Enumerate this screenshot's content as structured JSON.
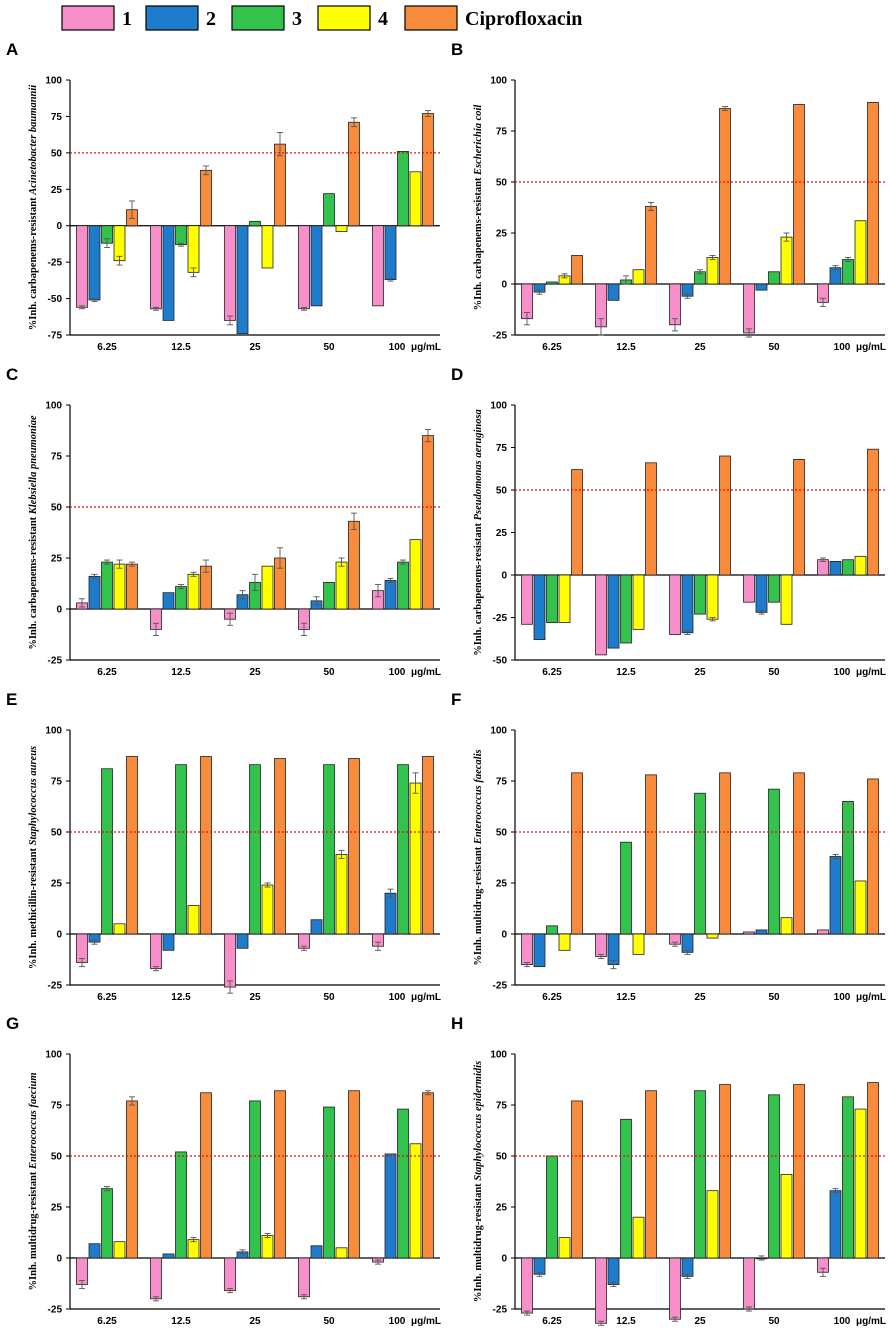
{
  "legend": {
    "entries": [
      {
        "label": "1",
        "color": "#f78fcb"
      },
      {
        "label": "2",
        "color": "#1f7ccc"
      },
      {
        "label": "3",
        "color": "#33c24c"
      },
      {
        "label": "4",
        "color": "#ffff00"
      },
      {
        "label": "Ciprofloxacin",
        "color": "#f98b3c"
      }
    ]
  },
  "chart_data": [
    {
      "panel": "A",
      "type": "bar",
      "ylabel_prefix": "%Inh. carbapenems-resistant ",
      "ylabel_italic": "Acinetobacter baumannii",
      "categories": [
        "6.25",
        "12.5",
        "25",
        "50",
        "100"
      ],
      "unit": "μg/mL",
      "ylim": [
        -75,
        100
      ],
      "yticks": [
        -75,
        -50,
        -25,
        0,
        25,
        50,
        75,
        100
      ],
      "reference_line": 50,
      "series": [
        {
          "name": "1",
          "values": [
            -56,
            -57,
            -65,
            -57,
            -55
          ],
          "errors": [
            1,
            1,
            3,
            1,
            0
          ]
        },
        {
          "name": "2",
          "values": [
            -51,
            -65,
            -74,
            -55,
            -37
          ],
          "errors": [
            1,
            0,
            0,
            0,
            1
          ]
        },
        {
          "name": "3",
          "values": [
            -12,
            -13,
            3,
            22,
            51
          ],
          "errors": [
            3,
            1,
            0,
            0,
            0
          ]
        },
        {
          "name": "4",
          "values": [
            -24,
            -32,
            -29,
            -4,
            37
          ],
          "errors": [
            3,
            3,
            0,
            0,
            0
          ]
        },
        {
          "name": "Ciprofloxacin",
          "values": [
            11,
            38,
            56,
            71,
            77
          ],
          "errors": [
            6,
            3,
            8,
            3,
            2
          ]
        }
      ]
    },
    {
      "panel": "B",
      "type": "bar",
      "ylabel_prefix": "%Inh. carbapenems-resistant ",
      "ylabel_italic": "Escherichia coil",
      "categories": [
        "6.25",
        "12.5",
        "25",
        "50",
        "100"
      ],
      "unit": "μg/mL",
      "ylim": [
        -25,
        100
      ],
      "yticks": [
        -25,
        0,
        25,
        50,
        75,
        100
      ],
      "reference_line": 50,
      "series": [
        {
          "name": "1",
          "values": [
            -17,
            -21,
            -20,
            -24,
            -9
          ],
          "errors": [
            3,
            4,
            3,
            2,
            2
          ]
        },
        {
          "name": "2",
          "values": [
            -4,
            -8,
            -6,
            -3,
            8
          ],
          "errors": [
            1,
            0,
            1,
            0,
            1
          ]
        },
        {
          "name": "3",
          "values": [
            1,
            2,
            6,
            6,
            12
          ],
          "errors": [
            0,
            2,
            1,
            0,
            1
          ]
        },
        {
          "name": "4",
          "values": [
            4,
            7,
            13,
            23,
            31
          ],
          "errors": [
            1,
            0,
            1,
            2,
            0
          ]
        },
        {
          "name": "Ciprofloxacin",
          "values": [
            14,
            38,
            86,
            88,
            89
          ],
          "errors": [
            0,
            2,
            1,
            0,
            0
          ]
        }
      ]
    },
    {
      "panel": "C",
      "type": "bar",
      "ylabel_prefix": "%Inh. carbapenems-resistant ",
      "ylabel_italic": "Klebsiella pneumoniae",
      "categories": [
        "6.25",
        "12.5",
        "25",
        "50",
        "100"
      ],
      "unit": "μg/mL",
      "ylim": [
        -25,
        100
      ],
      "yticks": [
        -25,
        0,
        25,
        50,
        75,
        100
      ],
      "reference_line": 50,
      "series": [
        {
          "name": "1",
          "values": [
            3,
            -10,
            -5,
            -10,
            9
          ],
          "errors": [
            2,
            3,
            3,
            3,
            3
          ]
        },
        {
          "name": "2",
          "values": [
            16,
            8,
            7,
            4,
            14
          ],
          "errors": [
            1,
            0,
            2,
            2,
            1
          ]
        },
        {
          "name": "3",
          "values": [
            23,
            11,
            13,
            13,
            23
          ],
          "errors": [
            1,
            1,
            4,
            0,
            1
          ]
        },
        {
          "name": "4",
          "values": [
            22,
            17,
            21,
            23,
            34
          ],
          "errors": [
            2,
            1,
            0,
            2,
            0
          ]
        },
        {
          "name": "Ciprofloxacin",
          "values": [
            22,
            21,
            25,
            43,
            85
          ],
          "errors": [
            1,
            3,
            5,
            4,
            3
          ]
        }
      ]
    },
    {
      "panel": "D",
      "type": "bar",
      "ylabel_prefix": "%Inh. carbapenems-resistant ",
      "ylabel_italic": "Pseudomonas aeruginosa",
      "categories": [
        "6.25",
        "12.5",
        "25",
        "50",
        "100"
      ],
      "unit": "μg/mL",
      "ylim": [
        -50,
        100
      ],
      "yticks": [
        -50,
        -25,
        0,
        25,
        50,
        75,
        100
      ],
      "reference_line": 50,
      "series": [
        {
          "name": "1",
          "values": [
            -29,
            -47,
            -35,
            -16,
            9
          ],
          "errors": [
            0,
            0,
            0,
            0,
            1
          ]
        },
        {
          "name": "2",
          "values": [
            -38,
            -43,
            -34,
            -22,
            8
          ],
          "errors": [
            0,
            0,
            1,
            1,
            0
          ]
        },
        {
          "name": "3",
          "values": [
            -28,
            -40,
            -23,
            -16,
            9
          ],
          "errors": [
            0,
            0,
            0,
            0,
            0
          ]
        },
        {
          "name": "4",
          "values": [
            -28,
            -32,
            -26,
            -29,
            11
          ],
          "errors": [
            0,
            0,
            1,
            0,
            0
          ]
        },
        {
          "name": "Ciprofloxacin",
          "values": [
            62,
            66,
            70,
            68,
            74
          ],
          "errors": [
            0,
            0,
            0,
            0,
            0
          ]
        }
      ]
    },
    {
      "panel": "E",
      "type": "bar",
      "ylabel_prefix": "%Inh. methicillin-resistant ",
      "ylabel_italic": "Staphylococcus aureus",
      "categories": [
        "6.25",
        "12.5",
        "25",
        "50",
        "100"
      ],
      "unit": "μg/mL",
      "ylim": [
        -25,
        100
      ],
      "yticks": [
        -25,
        0,
        25,
        50,
        75,
        100
      ],
      "reference_line": 50,
      "series": [
        {
          "name": "1",
          "values": [
            -14,
            -17,
            -26,
            -7,
            -6
          ],
          "errors": [
            2,
            1,
            3,
            1,
            2
          ]
        },
        {
          "name": "2",
          "values": [
            -4,
            -8,
            -7,
            7,
            20
          ],
          "errors": [
            1,
            0,
            0,
            0,
            2
          ]
        },
        {
          "name": "3",
          "values": [
            81,
            83,
            83,
            83,
            83
          ],
          "errors": [
            0,
            0,
            0,
            0,
            0
          ]
        },
        {
          "name": "4",
          "values": [
            5,
            14,
            24,
            39,
            74
          ],
          "errors": [
            0,
            0,
            1,
            2,
            5
          ]
        },
        {
          "name": "Ciprofloxacin",
          "values": [
            87,
            87,
            86,
            86,
            87
          ],
          "errors": [
            0,
            0,
            0,
            0,
            0
          ]
        }
      ]
    },
    {
      "panel": "F",
      "type": "bar",
      "ylabel_prefix": "%Inh. multidrug-resistant ",
      "ylabel_italic": "Enterococcus faecalis",
      "categories": [
        "6.25",
        "12.5",
        "25",
        "50",
        "100"
      ],
      "unit": "μg/mL",
      "ylim": [
        -25,
        100
      ],
      "yticks": [
        -25,
        0,
        25,
        50,
        75,
        100
      ],
      "reference_line": 50,
      "series": [
        {
          "name": "1",
          "values": [
            -15,
            -11,
            -5,
            1,
            2
          ],
          "errors": [
            1,
            1,
            1,
            0,
            0
          ]
        },
        {
          "name": "2",
          "values": [
            -16,
            -15,
            -9,
            2,
            38
          ],
          "errors": [
            0,
            2,
            1,
            0,
            1
          ]
        },
        {
          "name": "3",
          "values": [
            4,
            45,
            69,
            71,
            65
          ],
          "errors": [
            0,
            0,
            0,
            0,
            0
          ]
        },
        {
          "name": "4",
          "values": [
            -8,
            -10,
            -2,
            8,
            26
          ],
          "errors": [
            0,
            0,
            0,
            0,
            0
          ]
        },
        {
          "name": "Ciprofloxacin",
          "values": [
            79,
            78,
            79,
            79,
            76
          ],
          "errors": [
            0,
            0,
            0,
            0,
            0
          ]
        }
      ]
    },
    {
      "panel": "G",
      "type": "bar",
      "ylabel_prefix": "%Inh. multidrug-resistant ",
      "ylabel_italic": "Enterococcus faecium",
      "categories": [
        "6.25",
        "12.5",
        "25",
        "50",
        "100"
      ],
      "unit": "μg/mL",
      "ylim": [
        -25,
        100
      ],
      "yticks": [
        -25,
        0,
        25,
        50,
        75,
        100
      ],
      "reference_line": 50,
      "series": [
        {
          "name": "1",
          "values": [
            -13,
            -20,
            -16,
            -19,
            -2
          ],
          "errors": [
            2,
            1,
            1,
            1,
            1
          ]
        },
        {
          "name": "2",
          "values": [
            7,
            2,
            3,
            6,
            51
          ],
          "errors": [
            0,
            0,
            1,
            0,
            0
          ]
        },
        {
          "name": "3",
          "values": [
            34,
            52,
            77,
            74,
            73
          ],
          "errors": [
            1,
            0,
            0,
            0,
            0
          ]
        },
        {
          "name": "4",
          "values": [
            8,
            9,
            11,
            5,
            56
          ],
          "errors": [
            0,
            1,
            1,
            0,
            0
          ]
        },
        {
          "name": "Ciprofloxacin",
          "values": [
            77,
            81,
            82,
            82,
            81
          ],
          "errors": [
            2,
            0,
            0,
            0,
            1
          ]
        }
      ]
    },
    {
      "panel": "H",
      "type": "bar",
      "ylabel_prefix": "%Inh. multidrug-resistant ",
      "ylabel_italic": "Staphylococcus epidermidis",
      "categories": [
        "6.25",
        "12.5",
        "25",
        "50",
        "100"
      ],
      "unit": "μg/mL",
      "ylim": [
        -25,
        100
      ],
      "yticks": [
        -25,
        0,
        25,
        50,
        75,
        100
      ],
      "reference_line": 50,
      "series": [
        {
          "name": "1",
          "values": [
            -27,
            -32,
            -30,
            -25,
            -7
          ],
          "errors": [
            1,
            1,
            1,
            1,
            2
          ]
        },
        {
          "name": "2",
          "values": [
            -8,
            -13,
            -9,
            0,
            33
          ],
          "errors": [
            1,
            1,
            1,
            1,
            1
          ]
        },
        {
          "name": "3",
          "values": [
            50,
            68,
            82,
            80,
            79
          ],
          "errors": [
            0,
            0,
            0,
            0,
            0
          ]
        },
        {
          "name": "4",
          "values": [
            10,
            20,
            33,
            41,
            73
          ],
          "errors": [
            0,
            0,
            0,
            0,
            0
          ]
        },
        {
          "name": "Ciprofloxacin",
          "values": [
            77,
            82,
            85,
            85,
            86
          ],
          "errors": [
            0,
            0,
            0,
            0,
            0
          ]
        }
      ]
    }
  ]
}
